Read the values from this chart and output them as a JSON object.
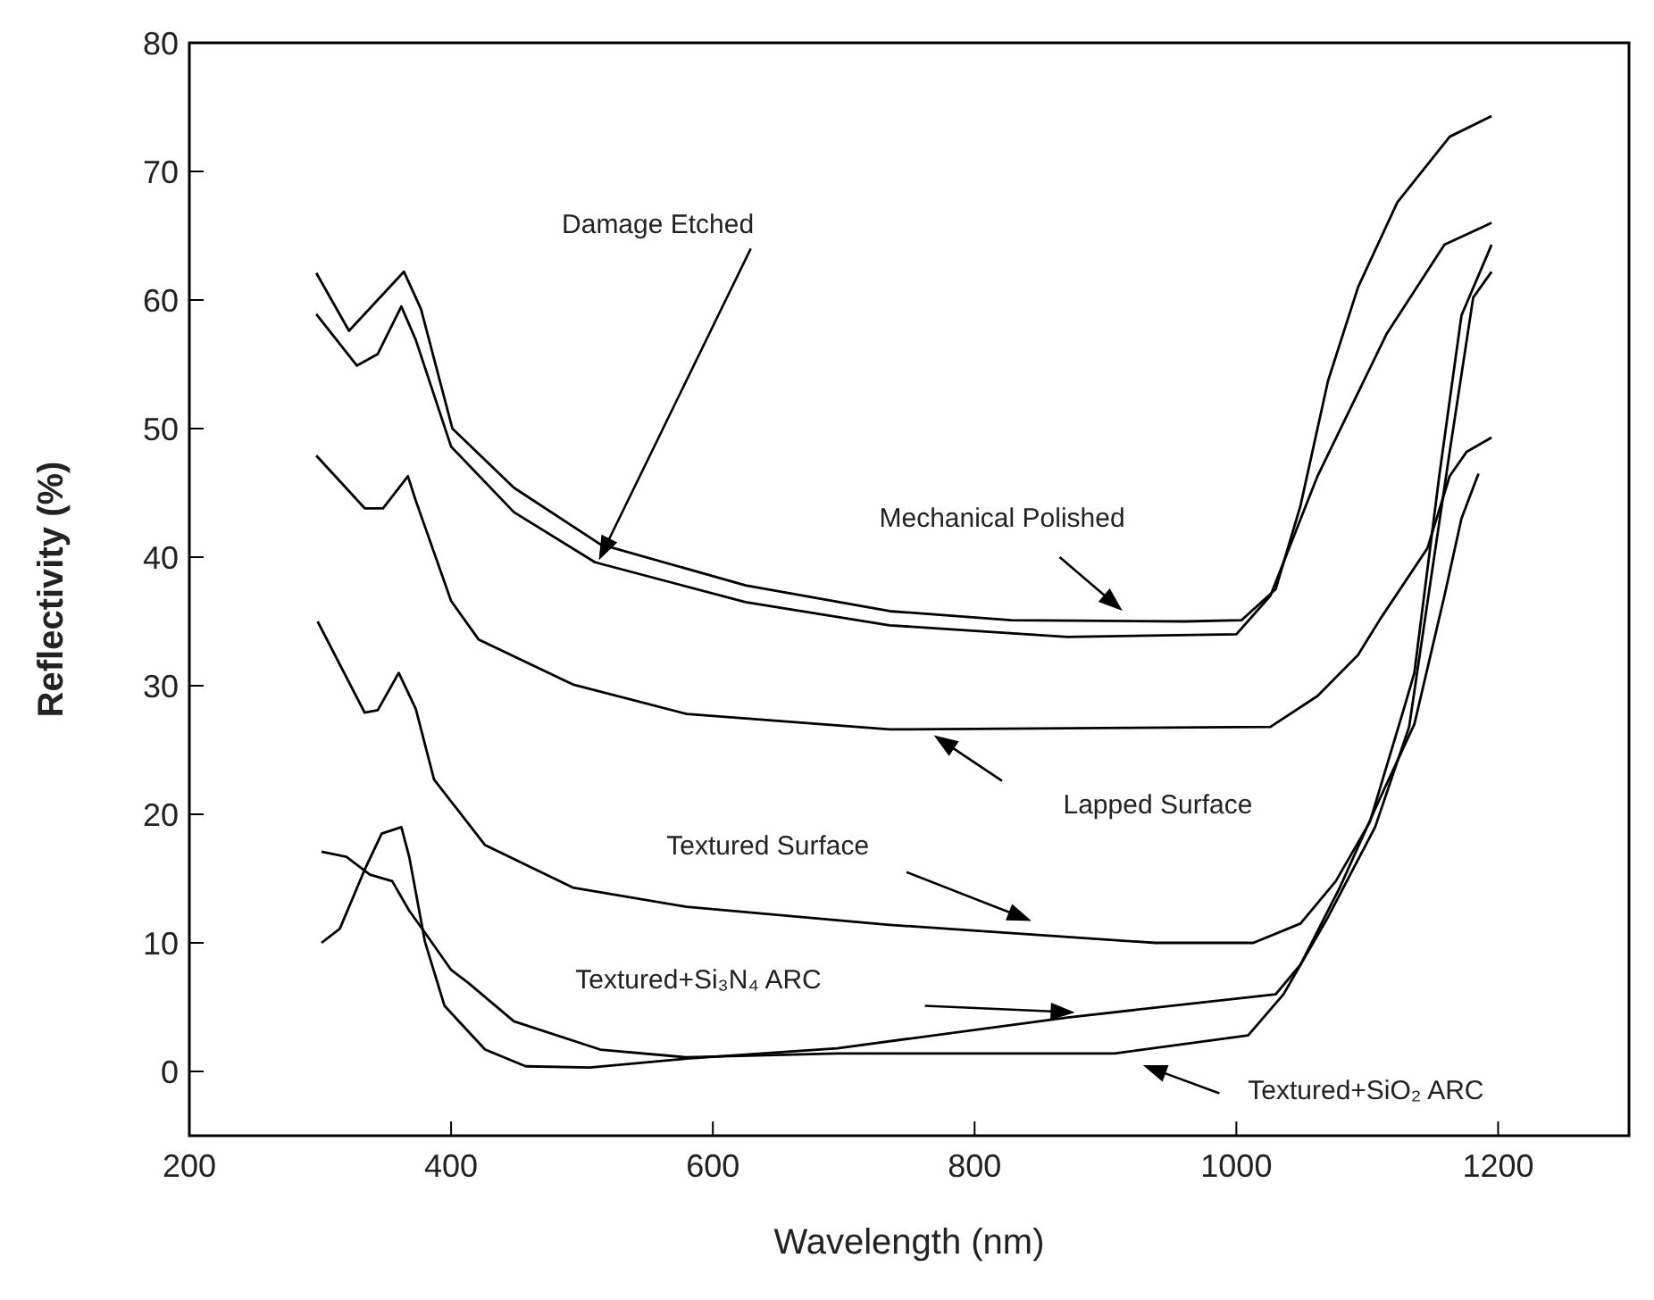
{
  "chart_data": {
    "type": "line",
    "xlabel": "Wavelength (nm)",
    "ylabel": "Reflectivity (%)",
    "xlim": [
      200,
      1300
    ],
    "xticks": [
      200,
      400,
      600,
      800,
      1000,
      1200
    ],
    "ylim": [
      -5,
      80
    ],
    "yticks": [
      0,
      10,
      20,
      30,
      40,
      50,
      60,
      70,
      80
    ],
    "grid": false,
    "legend": false,
    "marker": "none",
    "line_style": "solid",
    "annotations": [
      "Mechanical Polished",
      "Damage Etched",
      "Lapped Surface",
      "Textured Surface",
      "Textured+Si₃N₄ ARC",
      "Textured+SiO₂ ARC"
    ],
    "series": [
      {
        "color": "#000000",
        "x": [
          297,
          322,
          364,
          377,
          401,
          448,
          514,
          625,
          735,
          828,
          960,
          1004,
          1030,
          1049,
          1070,
          1093,
          1123,
          1163,
          1195
        ],
        "values": [
          62.1,
          57.6,
          62.2,
          59.3,
          50,
          45.4,
          41,
          37.8,
          35.8,
          35.1,
          35,
          35.1,
          37.5,
          44,
          53.7,
          61,
          67.6,
          72.7,
          74.3
        ]
      },
      {
        "color": "#000000",
        "x": [
          297,
          328,
          344,
          362,
          373,
          400,
          448,
          510,
          625,
          735,
          871,
          1000,
          1026,
          1062,
          1115,
          1159,
          1195
        ],
        "values": [
          58.9,
          54.9,
          55.8,
          59.5,
          56.9,
          48.6,
          43.5,
          39.6,
          36.5,
          34.7,
          33.8,
          34,
          37,
          46.3,
          57.4,
          64.3,
          66
        ]
      },
      {
        "color": "#000000",
        "x": [
          297,
          334,
          348,
          367,
          373,
          400,
          421,
          493,
          580,
          735,
          1026,
          1062,
          1093,
          1110,
          1146,
          1163,
          1176,
          1195
        ],
        "values": [
          47.9,
          43.8,
          43.8,
          46.3,
          44.4,
          36.6,
          33.6,
          30.1,
          27.8,
          26.6,
          26.8,
          29.2,
          32.4,
          35.2,
          40.7,
          46.3,
          48.2,
          49.3
        ]
      },
      {
        "color": "#000000",
        "x": [
          298,
          334,
          344,
          360,
          373,
          387,
          426,
          493,
          580,
          735,
          938,
          1013,
          1049,
          1076,
          1102,
          1128,
          1136,
          1155,
          1172,
          1195
        ],
        "values": [
          35,
          27.9,
          28.1,
          31,
          28.2,
          22.7,
          17.6,
          14.3,
          12.8,
          11.4,
          10,
          10,
          11.5,
          14.8,
          19.4,
          28.2,
          31,
          46.3,
          58.8,
          64.3
        ]
      },
      {
        "color": "#000000",
        "x": [
          301,
          315,
          334,
          347,
          362,
          368,
          380,
          395,
          426,
          457,
          506,
          580,
          695,
          871,
          1030,
          1049,
          1079,
          1110,
          1136,
          1159,
          1172,
          1185
        ],
        "values": [
          10,
          11.1,
          15.7,
          18.5,
          19,
          16.7,
          10.1,
          5.1,
          1.7,
          0.4,
          0.3,
          1,
          1.8,
          4.2,
          6,
          8.3,
          14.3,
          21.3,
          27,
          37,
          43,
          46.5
        ]
      },
      {
        "color": "#000000",
        "x": [
          301,
          320,
          338,
          355,
          368,
          380,
          400,
          413,
          448,
          514,
          580,
          695,
          907,
          1009,
          1036,
          1070,
          1106,
          1132,
          1163,
          1181,
          1195
        ],
        "values": [
          17.1,
          16.7,
          15.3,
          14.8,
          12.5,
          10.8,
          7.9,
          6.9,
          3.9,
          1.7,
          1.1,
          1.4,
          1.4,
          2.8,
          6,
          12,
          19,
          26.8,
          48.2,
          60.2,
          62.2
        ]
      }
    ]
  }
}
